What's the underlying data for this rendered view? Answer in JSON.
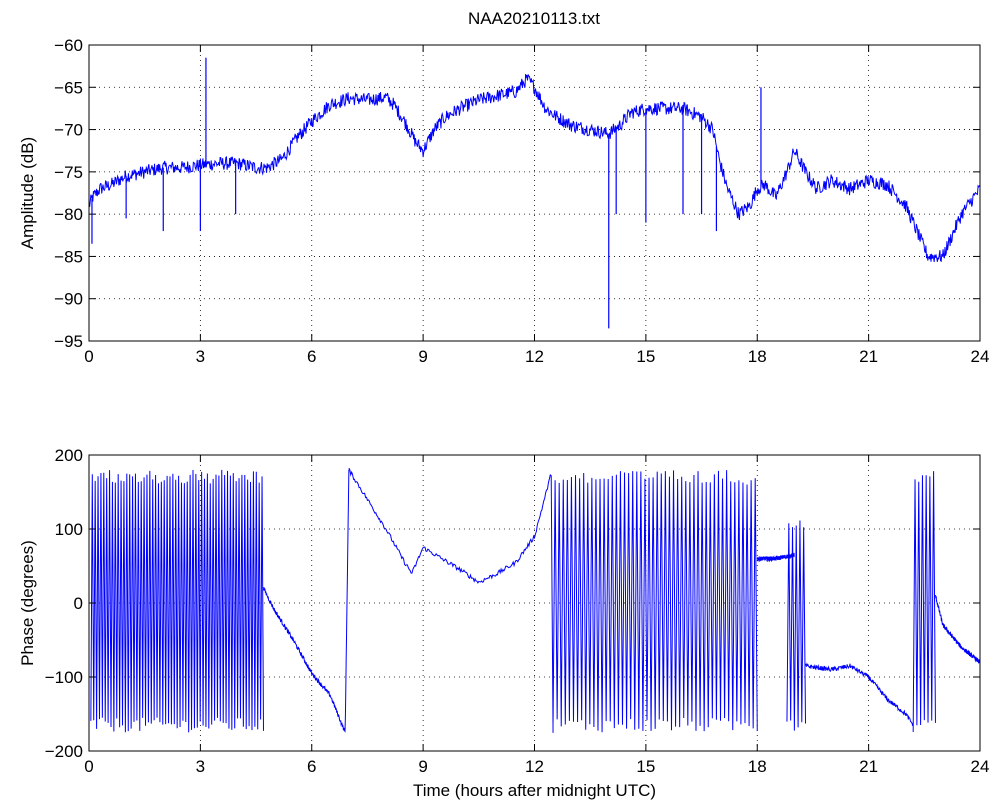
{
  "title": "NAA20210113.txt",
  "chart_data": [
    {
      "type": "line",
      "title": "NAA20210113.txt",
      "xlabel": "",
      "ylabel": "Amplitude (dB)",
      "xlim": [
        0,
        24
      ],
      "ylim": [
        -95,
        -60
      ],
      "xticks": [
        "0",
        "3",
        "6",
        "9",
        "12",
        "15",
        "18",
        "21",
        "24"
      ],
      "yticks": [
        "-95",
        "-90",
        "-85",
        "-80",
        "-75",
        "-70",
        "-65",
        "-60"
      ],
      "grid": true,
      "color": "#0000ff",
      "series": [
        {
          "x": [
            0,
            0.1,
            0.3,
            0.6,
            1.0,
            1.5,
            2.0,
            2.5,
            3.0,
            3.5,
            4.0,
            4.5,
            4.8,
            5.2,
            5.6,
            6.0,
            6.5,
            7.0,
            7.5,
            8.0,
            8.2,
            8.5,
            8.8,
            9.0,
            9.3,
            9.6,
            10.0,
            10.5,
            11.0,
            11.5,
            11.8,
            12.0,
            12.3,
            12.6,
            13.0,
            13.5,
            14.0,
            14.3,
            14.6,
            15.0,
            15.5,
            16.0,
            16.5,
            16.8,
            17.0,
            17.2,
            17.5,
            17.8,
            18.0,
            18.2,
            18.5,
            18.8,
            19.0,
            19.3,
            19.6,
            20.0,
            20.5,
            21.0,
            21.5,
            22.0,
            22.3,
            22.6,
            23.0,
            23.5,
            24.0
          ],
          "y": [
            -79,
            -78,
            -77,
            -76.5,
            -75.5,
            -75,
            -74.5,
            -74.5,
            -74.2,
            -74,
            -74,
            -74.5,
            -74.5,
            -73.5,
            -71,
            -69,
            -67,
            -66.3,
            -66.5,
            -66.2,
            -67,
            -69,
            -71.5,
            -72.5,
            -70,
            -68.5,
            -67.5,
            -66.5,
            -66,
            -65.5,
            -64,
            -65,
            -67.5,
            -68.5,
            -69.5,
            -70,
            -70.5,
            -69.5,
            -68,
            -67.5,
            -67.5,
            -67.5,
            -68.5,
            -70,
            -74,
            -77,
            -80,
            -79,
            -77,
            -76.5,
            -78,
            -75,
            -72.5,
            -75,
            -77,
            -76,
            -77,
            -76,
            -76.5,
            -79,
            -82,
            -85,
            -85,
            -80,
            -77
          ]
        }
      ],
      "spikes": [
        {
          "x": 0.08,
          "y": -83.5
        },
        {
          "x": 1.0,
          "y": -80.5
        },
        {
          "x": 2.0,
          "y": -82
        },
        {
          "x": 3.0,
          "y": -82
        },
        {
          "x": 3.15,
          "y": -61.5
        },
        {
          "x": 3.95,
          "y": -80
        },
        {
          "x": 14.0,
          "y": -93.5
        },
        {
          "x": 14.2,
          "y": -80
        },
        {
          "x": 15.0,
          "y": -81
        },
        {
          "x": 16.0,
          "y": -80
        },
        {
          "x": 16.5,
          "y": -80
        },
        {
          "x": 16.9,
          "y": -82
        },
        {
          "x": 18.1,
          "y": -65
        }
      ]
    },
    {
      "type": "line",
      "title": "",
      "xlabel": "Time (hours after midnight UTC)",
      "ylabel": "Phase (degrees)",
      "xlim": [
        0,
        24
      ],
      "ylim": [
        -200,
        200
      ],
      "xticks": [
        "0",
        "3",
        "6",
        "9",
        "12",
        "15",
        "18",
        "21",
        "24"
      ],
      "yticks": [
        "-200",
        "-100",
        "0",
        "100",
        "200"
      ],
      "grid": true,
      "color": "#0000ff",
      "segments": [
        {
          "kind": "wrap",
          "x_start": 0.05,
          "x_end": 4.7,
          "y_min": -175,
          "y_max": 180,
          "cycles": 60
        },
        {
          "kind": "line",
          "x": [
            4.7,
            5.0,
            5.5,
            6.0,
            6.5,
            6.9,
            7.0
          ],
          "y": [
            20,
            -10,
            -50,
            -95,
            -125,
            -175,
            180
          ]
        },
        {
          "kind": "line",
          "x": [
            7.0,
            7.5,
            8.0,
            8.5,
            8.7,
            9.0,
            9.5,
            10.0,
            10.5,
            11.0,
            11.5,
            12.0,
            12.45,
            12.5
          ],
          "y": [
            180,
            140,
            100,
            55,
            40,
            75,
            60,
            45,
            28,
            40,
            55,
            90,
            175,
            -175
          ]
        },
        {
          "kind": "wrap",
          "x_start": 12.5,
          "x_end": 18.0,
          "y_min": -175,
          "y_max": 180,
          "cycles": 50
        },
        {
          "kind": "line",
          "x": [
            18.0,
            18.5,
            19.0
          ],
          "y": [
            60,
            60,
            65
          ]
        },
        {
          "kind": "wrap",
          "x_start": 18.8,
          "x_end": 19.3,
          "y_min": -175,
          "y_max": 120,
          "cycles": 5
        },
        {
          "kind": "line",
          "x": [
            19.3,
            20.0,
            20.5,
            21.0,
            21.5,
            22.0,
            22.2
          ],
          "y": [
            -85,
            -90,
            -85,
            -100,
            -130,
            -150,
            -165
          ]
        },
        {
          "kind": "wrap",
          "x_start": 22.2,
          "x_end": 22.8,
          "y_min": -175,
          "y_max": 180,
          "cycles": 6
        },
        {
          "kind": "line",
          "x": [
            22.8,
            23.0,
            23.5,
            24.0
          ],
          "y": [
            10,
            -30,
            -60,
            -80
          ]
        }
      ]
    }
  ]
}
